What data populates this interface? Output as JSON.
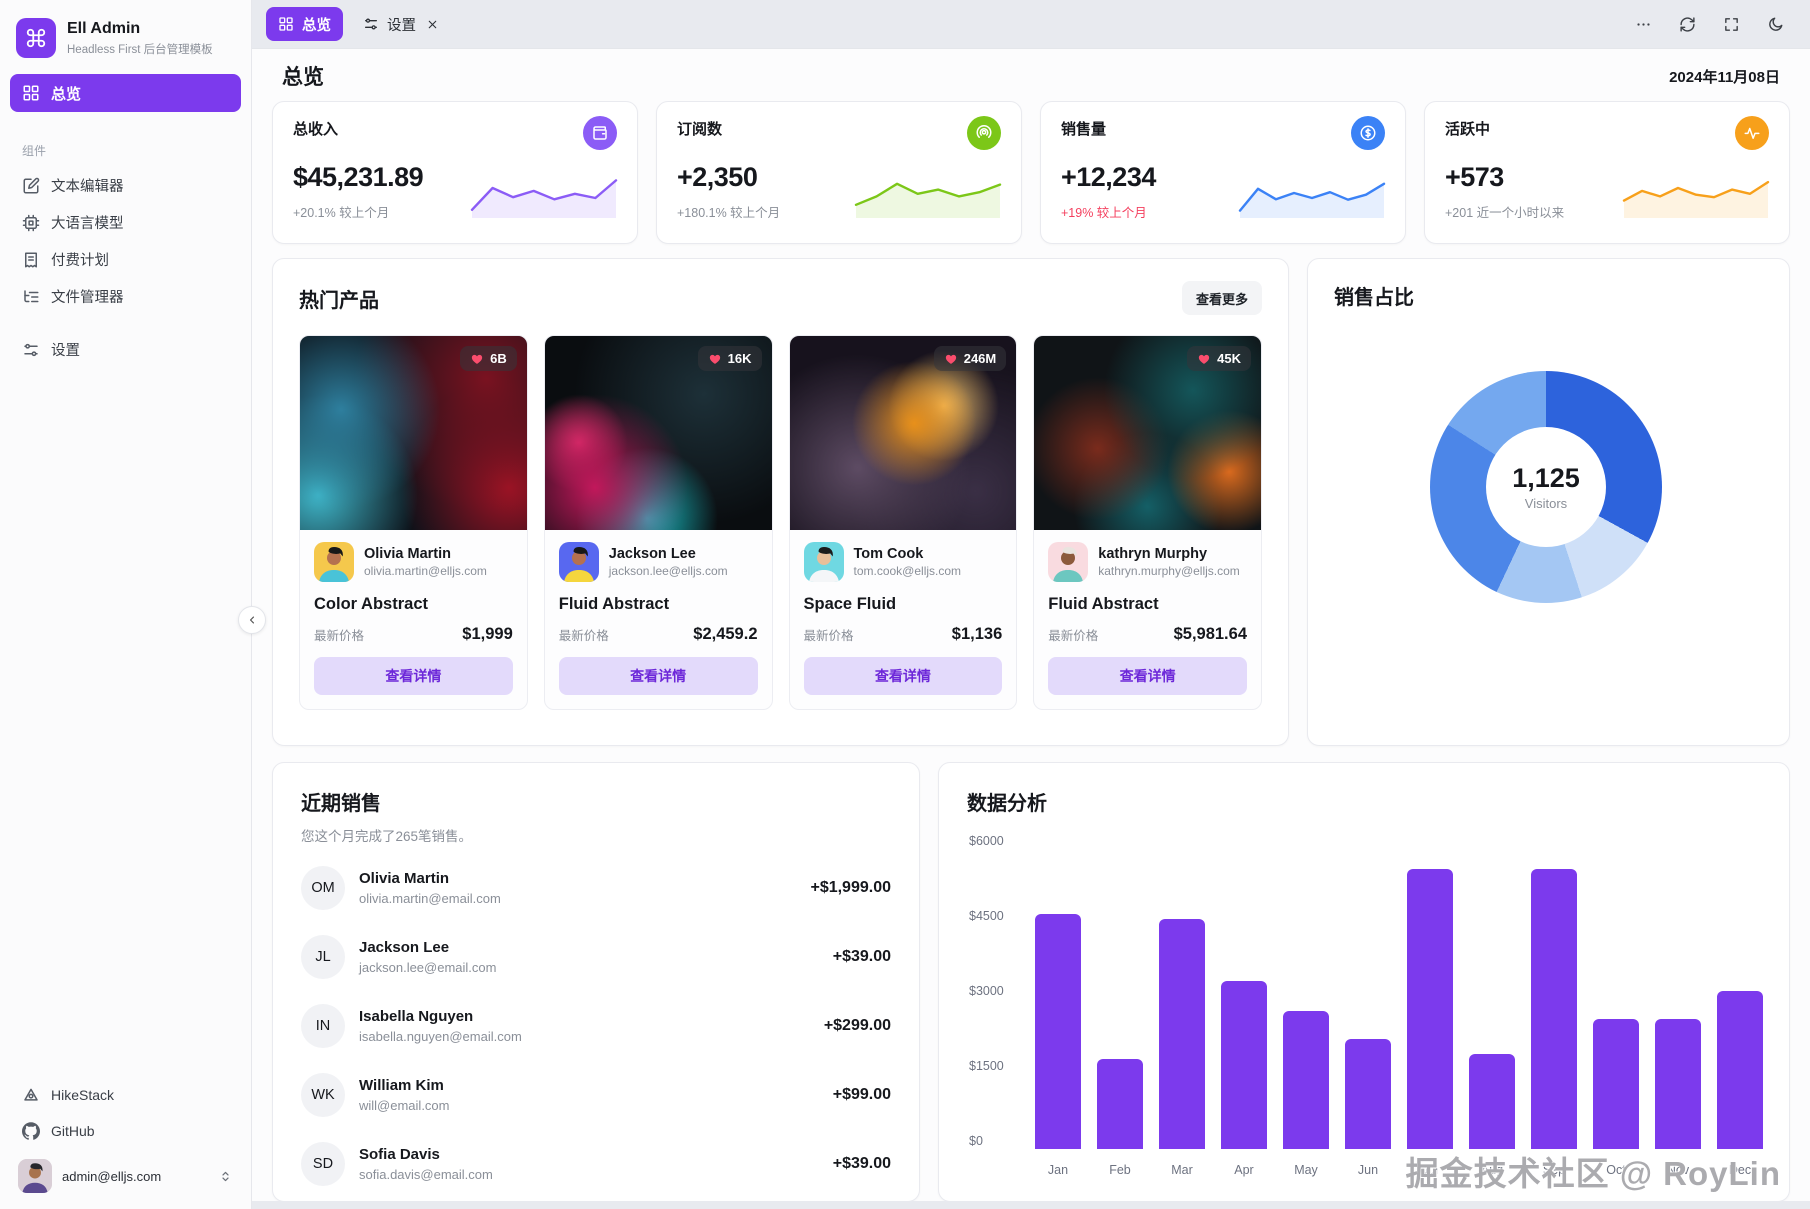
{
  "app": {
    "name": "Ell Admin",
    "subtitle": "Headless First 后台管理模板",
    "logo_icon": "command-icon",
    "accent_color": "#7c3aed"
  },
  "sidebar": {
    "active": {
      "key": "overview",
      "label": "总览",
      "icon": "grid-icon"
    },
    "section_label": "组件",
    "items": [
      {
        "key": "text-editor",
        "label": "文本编辑器",
        "icon": "square-pen-icon"
      },
      {
        "key": "llm",
        "label": "大语言模型",
        "icon": "cpu-icon"
      },
      {
        "key": "billing",
        "label": "付费计划",
        "icon": "receipt-icon"
      },
      {
        "key": "file-manager",
        "label": "文件管理器",
        "icon": "list-tree-icon"
      }
    ],
    "settings": {
      "key": "settings",
      "label": "设置",
      "icon": "sliders-icon"
    },
    "footer_links": [
      {
        "key": "hikestack",
        "label": "HikeStack",
        "icon": "hikestack-icon"
      },
      {
        "key": "github",
        "label": "GitHub",
        "icon": "github-icon"
      }
    ],
    "user": {
      "email": "admin@elljs.com",
      "chevron_icon": "chevrons-up-down-icon"
    }
  },
  "tabbar": {
    "tabs": [
      {
        "key": "overview",
        "label": "总览",
        "icon": "grid-icon",
        "active": true,
        "closable": false
      },
      {
        "key": "settings",
        "label": "设置",
        "icon": "sliders-icon",
        "active": false,
        "closable": true
      }
    ],
    "actions": [
      {
        "key": "more",
        "icon": "ellipsis-icon"
      },
      {
        "key": "refresh",
        "icon": "refresh-icon"
      },
      {
        "key": "fullscreen",
        "icon": "fullscreen-icon"
      },
      {
        "key": "theme",
        "icon": "moon-icon"
      }
    ]
  },
  "page": {
    "title": "总览",
    "date": "2024年11月08日"
  },
  "stats": [
    {
      "title": "总收入",
      "value": "$45,231.89",
      "note": "+20.1% 较上个月",
      "note_color": "#8a8f98",
      "icon": "wallet-icon",
      "accent": "#8b5cf6",
      "spark": [
        10,
        62,
        40,
        55,
        35,
        48,
        38,
        80
      ]
    },
    {
      "title": "订阅数",
      "value": "+2,350",
      "note": "+180.1% 较上个月",
      "note_color": "#8a8f98",
      "icon": "podcast-icon",
      "accent": "#7cc718",
      "spark": [
        22,
        42,
        72,
        48,
        58,
        42,
        52,
        70
      ]
    },
    {
      "title": "销售量",
      "value": "+12,234",
      "note": "+19% 较上个月",
      "note_color": "#f43f5e",
      "icon": "dollar-icon",
      "accent": "#3b82f6",
      "spark": [
        8,
        60,
        35,
        50,
        38,
        52,
        34,
        46,
        72
      ]
    },
    {
      "title": "活跃中",
      "value": "+573",
      "note": "+201 近一个小时以来",
      "note_color": "#8a8f98",
      "icon": "activity-icon",
      "accent": "#f7a01b",
      "spark": [
        32,
        55,
        42,
        62,
        46,
        40,
        58,
        48,
        76
      ]
    }
  ],
  "products": {
    "title": "热门产品",
    "more_label": "查看更多",
    "price_label": "最新价格",
    "cta_label": "查看详情",
    "items": [
      {
        "likes": "6B",
        "user": "Olivia Martin",
        "email": "olivia.martin@elljs.com",
        "name": "Color Abstract",
        "price": "$1,999",
        "avatar_bg": "#f5c84c",
        "shirt": "#49c3d8",
        "skin": "#b5714f",
        "hair": "#181818",
        "art": "art-1"
      },
      {
        "likes": "16K",
        "user": "Jackson Lee",
        "email": "jackson.lee@elljs.com",
        "name": "Fluid Abstract",
        "price": "$2,459.2",
        "avatar_bg": "#5868f0",
        "shirt": "#f5d63d",
        "skin": "#b5714f",
        "hair": "#181818",
        "art": "art-2"
      },
      {
        "likes": "246M",
        "user": "Tom Cook",
        "email": "tom.cook@elljs.com",
        "name": "Space Fluid",
        "price": "$1,136",
        "avatar_bg": "#6fd8e2",
        "shirt": "#f4f6f8",
        "skin": "#e8bf9a",
        "hair": "#1b1b1b",
        "art": "art-3"
      },
      {
        "likes": "45K",
        "user": "kathryn Murphy",
        "email": "kathryn.murphy@elljs.com",
        "name": "Fluid Abstract",
        "price": "$5,981.64",
        "avatar_bg": "#f9dbe0",
        "shirt": "#6cc7c0",
        "skin": "#8c5a3c",
        "hair": "#e9e4df",
        "art": "art-4"
      }
    ]
  },
  "sales_share": {
    "title": "销售占比",
    "center_value": "1,125",
    "center_label": "Visitors"
  },
  "recent": {
    "title": "近期销售",
    "subtitle": "您这个月完成了265笔销售。",
    "rows": [
      {
        "initials": "OM",
        "name": "Olivia Martin",
        "email": "olivia.martin@email.com",
        "amount": "+$1,999.00"
      },
      {
        "initials": "JL",
        "name": "Jackson Lee",
        "email": "jackson.lee@email.com",
        "amount": "+$39.00"
      },
      {
        "initials": "IN",
        "name": "Isabella Nguyen",
        "email": "isabella.nguyen@email.com",
        "amount": "+$299.00"
      },
      {
        "initials": "WK",
        "name": "William Kim",
        "email": "will@email.com",
        "amount": "+$99.00"
      },
      {
        "initials": "SD",
        "name": "Sofia Davis",
        "email": "sofia.davis@email.com",
        "amount": "+$39.00"
      }
    ]
  },
  "analytics": {
    "title": "数据分析"
  },
  "watermark": "掘金技术社区 @ RoyLin",
  "chart_data": [
    {
      "type": "pie",
      "title": "销售占比",
      "center_value": 1125,
      "center_label": "Visitors",
      "legend_position": "none",
      "segments": [
        {
          "value": 33,
          "color": "#2d63dc"
        },
        {
          "value": 12,
          "color": "#cfe0f8"
        },
        {
          "value": 12,
          "color": "#a4c7f3"
        },
        {
          "value": 27,
          "color": "#4c86e8"
        },
        {
          "value": 16,
          "color": "#74a8ef"
        }
      ]
    },
    {
      "type": "bar",
      "title": "数据分析",
      "categories": [
        "Jan",
        "Feb",
        "Mar",
        "Apr",
        "May",
        "Jun",
        "Jul",
        "Aug",
        "Sep",
        "Oct",
        "Nov",
        "Dec"
      ],
      "values": [
        4700,
        1800,
        4600,
        3350,
        2750,
        2200,
        5600,
        1900,
        5600,
        2600,
        2600,
        3150
      ],
      "bar_color": "#7c3aed",
      "xlabel": "",
      "ylabel": "",
      "ylim": [
        0,
        6000
      ],
      "yticks": [
        6000,
        4500,
        3000,
        1500,
        0
      ],
      "ytick_labels": [
        "$6000",
        "$4500",
        "$3000",
        "$1500",
        "$0"
      ],
      "grid": false,
      "legend_position": "none"
    }
  ]
}
